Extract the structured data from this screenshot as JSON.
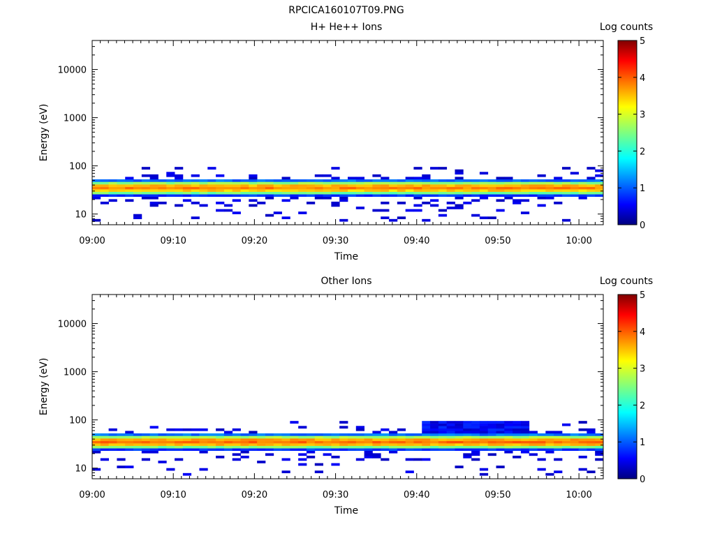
{
  "figure_title": "RPCICA160107T09.PNG",
  "chart_data": [
    {
      "type": "heatmap",
      "title": "H+ He++ Ions",
      "xlabel": "Time",
      "ylabel": "Energy (eV)",
      "y_scale": "log",
      "ylim": [
        6,
        40000
      ],
      "xlim": [
        "09:00",
        "10:03"
      ],
      "x_ticks": [
        "09:00",
        "09:10",
        "09:20",
        "09:30",
        "09:40",
        "09:50",
        "10:00"
      ],
      "y_ticks": [
        "10",
        "100",
        "1000",
        "10000"
      ],
      "colorbar": {
        "label": "Log counts",
        "range": [
          0,
          5
        ],
        "ticks": [
          "0",
          "1",
          "2",
          "3",
          "4",
          "5"
        ]
      },
      "time_bins": 62,
      "core_energy_range_eV": [
        22,
        50
      ],
      "peak_energy_eV": 35,
      "peak_log_counts": 3.9,
      "sporadic_counts_energy_range_eV": [
        7,
        90
      ]
    },
    {
      "type": "heatmap",
      "title": "Other Ions",
      "xlabel": "Time",
      "ylabel": "Energy (eV)",
      "y_scale": "log",
      "ylim": [
        6,
        40000
      ],
      "xlim": [
        "09:00",
        "10:03"
      ],
      "x_ticks": [
        "09:00",
        "09:10",
        "09:20",
        "09:30",
        "09:40",
        "09:50",
        "10:00"
      ],
      "y_ticks": [
        "10",
        "100",
        "1000",
        "10000"
      ],
      "colorbar": {
        "label": "Log counts",
        "range": [
          0,
          5
        ],
        "ticks": [
          "0",
          "1",
          "2",
          "3",
          "4",
          "5"
        ]
      },
      "time_bins": 62,
      "core_energy_range_eV": [
        22,
        50
      ],
      "peak_energy_eV": 35,
      "peak_log_counts": 4.0,
      "sporadic_counts_energy_range_eV": [
        7,
        90
      ],
      "enhanced_interval": [
        "09:41",
        "09:54"
      ],
      "enhanced_energy_range_eV": [
        50,
        95
      ]
    }
  ]
}
